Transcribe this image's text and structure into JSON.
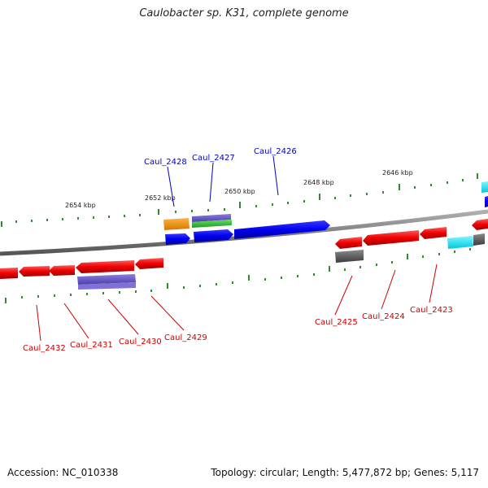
{
  "title": "Caulobacter sp. K31, complete genome",
  "footer": {
    "accession": "Accession: NC_010338",
    "summary": "Topology: circular; Length: 5,477,872 bp; Genes: 5,117"
  },
  "scale_labels": [
    "2654 kbp",
    "2652 kbp",
    "2650 kbp",
    "2648 kbp",
    "2646 kbp"
  ],
  "colors": {
    "backbone": "#808080",
    "ticks": "#2e8b2e",
    "forward_label": "#0000cc",
    "reverse_label": "#cc0000",
    "cds_forward": "#0000ee",
    "cds_reverse": "#ee0000"
  },
  "gene_labels": {
    "forward": [
      "Caul_2428",
      "Caul_2427",
      "Caul_2426"
    ],
    "reverse": [
      "Caul_2432",
      "Caul_2431",
      "Caul_2430",
      "Caul_2429",
      "Caul_2425",
      "Caul_2424",
      "Caul_2423"
    ]
  }
}
